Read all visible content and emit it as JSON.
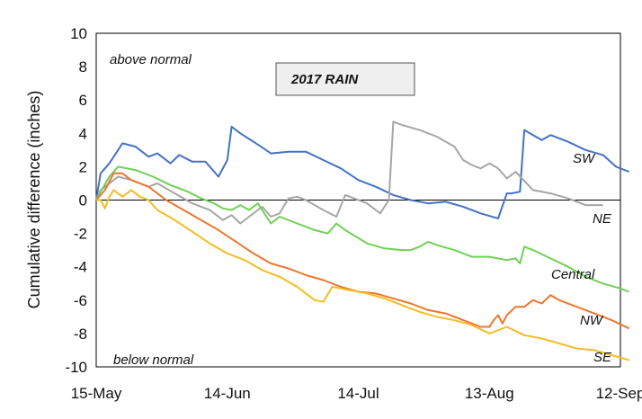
{
  "chart_data": {
    "type": "line",
    "title": "2017 RAIN",
    "xlabel": "",
    "ylabel": "Cumulative difference (inches)",
    "x_ticks": [
      0,
      30,
      60,
      90,
      120
    ],
    "x_tick_labels": [
      "15-May",
      "14-Jun",
      "14-Jul",
      "13-Aug",
      "12-Sep"
    ],
    "xlim": [
      0,
      120
    ],
    "ylim": [
      -10,
      10
    ],
    "y_ticks": [
      -10,
      -8,
      -6,
      -4,
      -2,
      0,
      2,
      4,
      6,
      8,
      10
    ],
    "annotations": {
      "above": "above normal",
      "below": "below normal"
    },
    "grid": false,
    "series": [
      {
        "name": "SW",
        "color": "#4472C4",
        "points": [
          [
            0,
            0
          ],
          [
            1,
            1.6
          ],
          [
            3,
            2.2
          ],
          [
            6,
            3.4
          ],
          [
            9,
            3.2
          ],
          [
            12,
            2.6
          ],
          [
            14,
            2.8
          ],
          [
            17,
            2.2
          ],
          [
            19,
            2.7
          ],
          [
            22,
            2.3
          ],
          [
            25,
            2.3
          ],
          [
            28,
            1.4
          ],
          [
            30,
            2.4
          ],
          [
            31,
            4.4
          ],
          [
            33,
            4.0
          ],
          [
            36,
            3.5
          ],
          [
            40,
            2.8
          ],
          [
            44,
            2.9
          ],
          [
            48,
            2.9
          ],
          [
            52,
            2.4
          ],
          [
            56,
            1.9
          ],
          [
            60,
            1.2
          ],
          [
            64,
            0.8
          ],
          [
            68,
            0.3
          ],
          [
            72,
            0
          ],
          [
            76,
            -0.2
          ],
          [
            80,
            -0.1
          ],
          [
            84,
            -0.4
          ],
          [
            88,
            -0.8
          ],
          [
            92,
            -1.1
          ],
          [
            94,
            0.4
          ],
          [
            95,
            0.4
          ],
          [
            97,
            0.5
          ],
          [
            98,
            4.2
          ],
          [
            100,
            3.9
          ],
          [
            102,
            3.6
          ],
          [
            104,
            3.9
          ],
          [
            108,
            3.5
          ],
          [
            112,
            3.0
          ],
          [
            116,
            2.7
          ],
          [
            119,
            2.0
          ],
          [
            122,
            1.7
          ]
        ]
      },
      {
        "name": "NE",
        "color": "#A6A6A6",
        "points": [
          [
            0,
            0
          ],
          [
            1,
            0.6
          ],
          [
            3,
            1.0
          ],
          [
            5,
            1.4
          ],
          [
            8,
            1.2
          ],
          [
            12,
            0.8
          ],
          [
            14,
            1.0
          ],
          [
            18,
            0.4
          ],
          [
            22,
            -0.2
          ],
          [
            26,
            -0.6
          ],
          [
            29,
            -1.2
          ],
          [
            31,
            -0.9
          ],
          [
            33,
            -1.4
          ],
          [
            35,
            -1.0
          ],
          [
            38,
            -0.4
          ],
          [
            40,
            -1.0
          ],
          [
            42,
            -0.8
          ],
          [
            44,
            0.1
          ],
          [
            46,
            0.2
          ],
          [
            48,
            0
          ],
          [
            52,
            -0.6
          ],
          [
            55,
            -1.0
          ],
          [
            57,
            0.3
          ],
          [
            59,
            0.1
          ],
          [
            62,
            -0.2
          ],
          [
            65,
            -0.8
          ],
          [
            67,
            0
          ],
          [
            68,
            4.7
          ],
          [
            70,
            4.5
          ],
          [
            74,
            4.2
          ],
          [
            78,
            3.8
          ],
          [
            82,
            3.2
          ],
          [
            84,
            2.4
          ],
          [
            86,
            2.1
          ],
          [
            88,
            1.9
          ],
          [
            90,
            2.2
          ],
          [
            92,
            1.9
          ],
          [
            94,
            1.3
          ],
          [
            96,
            1.7
          ],
          [
            100,
            0.6
          ],
          [
            104,
            0.4
          ],
          [
            108,
            0.1
          ],
          [
            112,
            -0.3
          ],
          [
            116,
            -0.3
          ]
        ]
      },
      {
        "name": "Central",
        "color": "#70D055",
        "points": [
          [
            0,
            0
          ],
          [
            1,
            0.5
          ],
          [
            3,
            1.4
          ],
          [
            5,
            2.0
          ],
          [
            9,
            1.8
          ],
          [
            13,
            1.4
          ],
          [
            17,
            0.9
          ],
          [
            21,
            0.5
          ],
          [
            24,
            0.1
          ],
          [
            27,
            -0.2
          ],
          [
            29,
            -0.5
          ],
          [
            31,
            -0.6
          ],
          [
            33,
            -0.3
          ],
          [
            35,
            -0.6
          ],
          [
            37,
            -0.2
          ],
          [
            40,
            -1.4
          ],
          [
            42,
            -1.0
          ],
          [
            46,
            -1.4
          ],
          [
            50,
            -1.8
          ],
          [
            53,
            -2.0
          ],
          [
            55,
            -1.4
          ],
          [
            57,
            -1.8
          ],
          [
            62,
            -2.6
          ],
          [
            66,
            -2.9
          ],
          [
            70,
            -3.0
          ],
          [
            72,
            -3.0
          ],
          [
            74,
            -2.8
          ],
          [
            76,
            -2.5
          ],
          [
            78,
            -2.7
          ],
          [
            82,
            -3.0
          ],
          [
            86,
            -3.4
          ],
          [
            90,
            -3.4
          ],
          [
            94,
            -3.6
          ],
          [
            96,
            -3.5
          ],
          [
            97,
            -3.8
          ],
          [
            98,
            -2.8
          ],
          [
            100,
            -3.0
          ],
          [
            104,
            -3.5
          ],
          [
            108,
            -4.0
          ],
          [
            112,
            -4.6
          ],
          [
            116,
            -5.0
          ],
          [
            120,
            -5.3
          ],
          [
            122,
            -5.5
          ]
        ]
      },
      {
        "name": "NW",
        "color": "#F07530",
        "points": [
          [
            0,
            0
          ],
          [
            2,
            0.6
          ],
          [
            4,
            1.6
          ],
          [
            6,
            1.6
          ],
          [
            8,
            1.2
          ],
          [
            12,
            0.8
          ],
          [
            16,
            0
          ],
          [
            20,
            -0.6
          ],
          [
            24,
            -1.2
          ],
          [
            28,
            -1.8
          ],
          [
            32,
            -2.5
          ],
          [
            36,
            -3.2
          ],
          [
            40,
            -3.8
          ],
          [
            44,
            -4.1
          ],
          [
            48,
            -4.5
          ],
          [
            52,
            -4.8
          ],
          [
            56,
            -5.2
          ],
          [
            60,
            -5.5
          ],
          [
            64,
            -5.6
          ],
          [
            68,
            -5.9
          ],
          [
            72,
            -6.2
          ],
          [
            76,
            -6.6
          ],
          [
            80,
            -6.8
          ],
          [
            84,
            -7.2
          ],
          [
            88,
            -7.6
          ],
          [
            90,
            -7.6
          ],
          [
            91,
            -7.2
          ],
          [
            92,
            -6.9
          ],
          [
            93,
            -7.4
          ],
          [
            94,
            -6.9
          ],
          [
            96,
            -6.4
          ],
          [
            98,
            -6.4
          ],
          [
            100,
            -6.0
          ],
          [
            102,
            -6.2
          ],
          [
            104,
            -5.7
          ],
          [
            106,
            -6.0
          ],
          [
            110,
            -6.4
          ],
          [
            114,
            -6.8
          ],
          [
            118,
            -7.2
          ],
          [
            122,
            -7.7
          ]
        ]
      },
      {
        "name": "SE",
        "color": "#F5BC22",
        "points": [
          [
            0,
            0
          ],
          [
            1,
            0
          ],
          [
            2,
            -0.5
          ],
          [
            3,
            0.2
          ],
          [
            4,
            0.6
          ],
          [
            6,
            0.2
          ],
          [
            8,
            0.6
          ],
          [
            10,
            0.2
          ],
          [
            12,
            0
          ],
          [
            14,
            -0.6
          ],
          [
            18,
            -1.2
          ],
          [
            22,
            -1.9
          ],
          [
            26,
            -2.6
          ],
          [
            30,
            -3.2
          ],
          [
            34,
            -3.6
          ],
          [
            38,
            -4.2
          ],
          [
            42,
            -4.6
          ],
          [
            46,
            -5.2
          ],
          [
            50,
            -6.0
          ],
          [
            52,
            -6.1
          ],
          [
            54,
            -5.2
          ],
          [
            58,
            -5.4
          ],
          [
            62,
            -5.6
          ],
          [
            66,
            -5.9
          ],
          [
            70,
            -6.3
          ],
          [
            74,
            -6.7
          ],
          [
            78,
            -7.0
          ],
          [
            82,
            -7.2
          ],
          [
            86,
            -7.5
          ],
          [
            90,
            -8.0
          ],
          [
            94,
            -7.6
          ],
          [
            98,
            -8.1
          ],
          [
            102,
            -8.3
          ],
          [
            106,
            -8.6
          ],
          [
            110,
            -8.9
          ],
          [
            114,
            -9.0
          ],
          [
            118,
            -9.3
          ],
          [
            122,
            -9.6
          ]
        ]
      }
    ]
  },
  "series_labels": [
    "SW",
    "NE",
    "Central",
    "NW",
    "SE"
  ]
}
